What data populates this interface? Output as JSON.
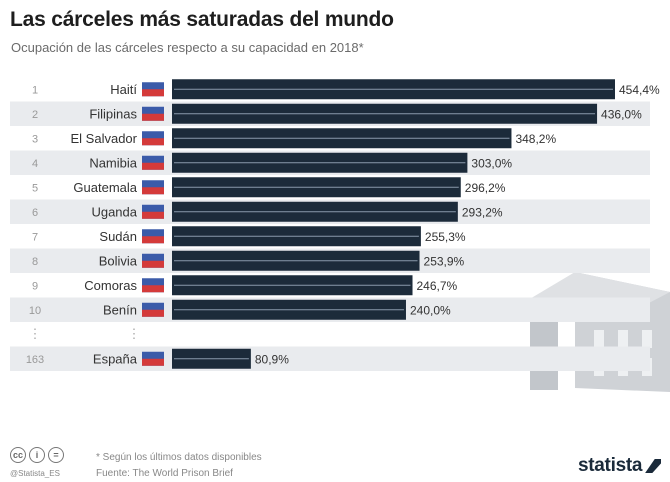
{
  "header": {
    "title": "Las cárceles más saturadas del mundo",
    "subtitle": "Ocupación de las cárceles respecto a su capacidad en 2018*"
  },
  "chart_data": {
    "type": "bar",
    "orientation": "horizontal",
    "title": "Las cárceles más saturadas del mundo",
    "subtitle": "Ocupación de las cárceles respecto a su capacidad en 2018*",
    "unit": "%",
    "rows": [
      {
        "rank": "1",
        "country": "Haití",
        "value": 454.4,
        "label": "454,4%"
      },
      {
        "rank": "2",
        "country": "Filipinas",
        "value": 436.0,
        "label": "436,0%"
      },
      {
        "rank": "3",
        "country": "El Salvador",
        "value": 348.2,
        "label": "348,2%"
      },
      {
        "rank": "4",
        "country": "Namibia",
        "value": 303.0,
        "label": "303,0%"
      },
      {
        "rank": "5",
        "country": "Guatemala",
        "value": 296.2,
        "label": "296,2%"
      },
      {
        "rank": "6",
        "country": "Uganda",
        "value": 293.2,
        "label": "293,2%"
      },
      {
        "rank": "7",
        "country": "Sudán",
        "value": 255.3,
        "label": "255,3%"
      },
      {
        "rank": "8",
        "country": "Bolivia",
        "value": 253.9,
        "label": "253,9%"
      },
      {
        "rank": "9",
        "country": "Comoras",
        "value": 246.7,
        "label": "246,7%"
      },
      {
        "rank": "10",
        "country": "Benín",
        "value": 240.0,
        "label": "240,0%"
      },
      {
        "rank": "163",
        "country": "España",
        "value": 80.9,
        "label": "80,9%"
      }
    ],
    "ellipsis": "⋮",
    "xlim": [
      0,
      454.4
    ],
    "grid": false,
    "legend": "none",
    "colors": {
      "bar": "#1c2b3a",
      "wire": "#8a9aab",
      "row_stripe": "#e9ebee",
      "illustration": "#cfd2d6"
    }
  },
  "footer": {
    "note": "* Según los últimos datos disponibles",
    "source": "Fuente: The World Prison Brief",
    "handle": "@Statista_ES",
    "brand": "statista",
    "license_icons": [
      "cc-icon",
      "by-icon",
      "nd-icon"
    ]
  }
}
